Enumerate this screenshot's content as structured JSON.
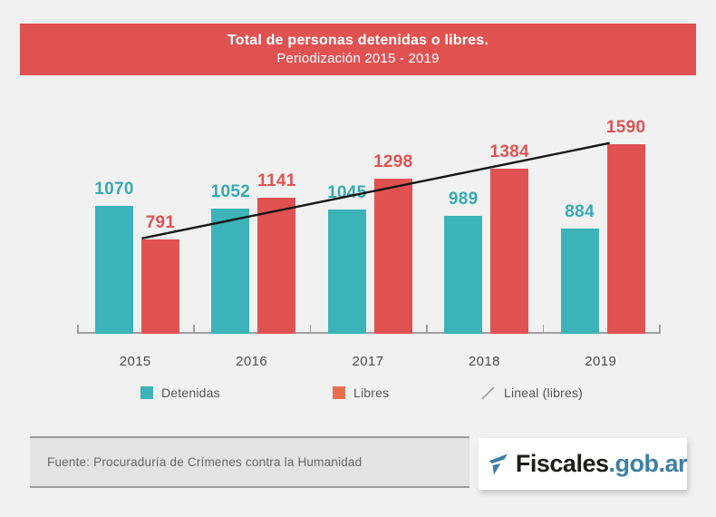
{
  "header": {
    "title": "Total de personas detenidas o libres.",
    "subtitle": "Periodización 2015 - 2019"
  },
  "chart_data": {
    "type": "bar",
    "title": "Total de personas detenidas o libres. Periodización 2015 - 2019",
    "categories": [
      "2015",
      "2016",
      "2017",
      "2018",
      "2019"
    ],
    "series": [
      {
        "name": "Detenidas",
        "color": "#3cb2b9",
        "label_color": "#35a9b1",
        "values": [
          1070,
          1052,
          1045,
          989,
          884
        ]
      },
      {
        "name": "Libres",
        "color": "#e05252",
        "label_color": "#e05252",
        "values": [
          791,
          1141,
          1298,
          1384,
          1590
        ]
      }
    ],
    "trendline": {
      "name": "Lineal (libres)",
      "color": "#161616",
      "from_category": "2015",
      "from_value": 791,
      "to_category": "2019",
      "to_value": 1590
    },
    "ylim": [
      0,
      1640
    ],
    "grid": false,
    "data_labels": true,
    "legend_position": "bottom",
    "axis_color": "#9e9e9e"
  },
  "legend": {
    "items": [
      {
        "label": "Detenidas",
        "swatch_color": "#3cb2b9",
        "icon": "square"
      },
      {
        "label": "Libres",
        "swatch_color": "#e8704f",
        "icon": "square"
      },
      {
        "label": "Lineal (libres)",
        "swatch_color": "#9e9e9e",
        "icon": "slash"
      }
    ]
  },
  "footer": {
    "source": "Fuente: Procuraduría de Crímenes contra la Humanidad"
  },
  "logo": {
    "brand": "Fiscales",
    "domain": ".gob.ar",
    "brand_color": "#1d1d1b",
    "domain_color": "#3d80a4",
    "icon_color": "#3c7fa5"
  }
}
